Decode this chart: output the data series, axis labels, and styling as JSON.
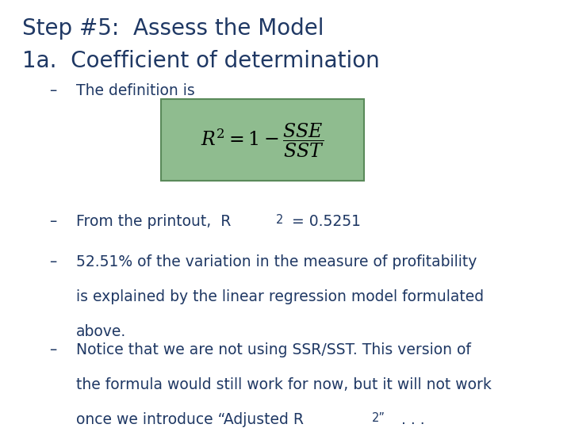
{
  "title1": "Step #5:  Assess the Model",
  "title2": "1a.  Coefficient of determination",
  "bullet1_intro": "The definition is",
  "formula_bg_color": "#8FBC8F",
  "formula_border_color": "#5A8A5A",
  "bullet2": "From the printout,  R",
  "bullet2_sup": "2",
  "bullet2_end": " = 0.5251",
  "bullet3_line1": "52.51% of the variation in the measure of profitability",
  "bullet3_line2": "is explained by the linear regression model formulated",
  "bullet3_line3": "above.",
  "bullet4_line1": "Notice that we are not using SSR/SST. This version of",
  "bullet4_line2": "the formula would still work for now, but it will not work",
  "bullet4_line3": "once we introduce “Adjusted R",
  "bullet4_sup": "2”",
  "bullet4_end": " . . .",
  "title_color": "#1F3864",
  "text_color": "#1F3864",
  "bg_color": "#FFFFFF",
  "title_fontsize": 20,
  "body_fontsize": 13.5,
  "dash": "–"
}
